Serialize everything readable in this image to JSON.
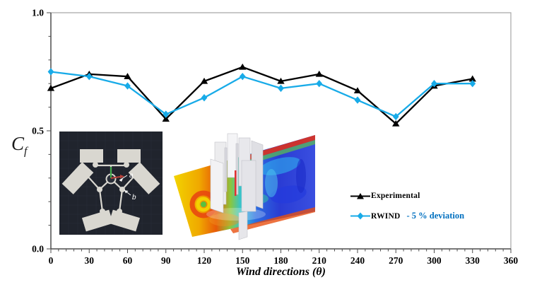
{
  "chart_data": {
    "type": "line",
    "title": "",
    "xlabel": "Wind directions (θ)",
    "ylabel_main": "C",
    "ylabel_sub": "f",
    "xlim": [
      0,
      360
    ],
    "ylim": [
      0,
      1
    ],
    "grid": false,
    "x_major_tick_step": 30,
    "x_minor_tick_step": 6,
    "x_major_tick_labels": [
      "0",
      "30",
      "60",
      "90",
      "120",
      "150",
      "180",
      "210",
      "240",
      "270",
      "300",
      "330",
      "360"
    ],
    "y_minor_tick_step": 0.1,
    "y_major_ticks": [
      0,
      0.5,
      1
    ],
    "y_major_tick_labels": [
      "0.0",
      "0.5",
      "1.0"
    ],
    "x": [
      0,
      30,
      60,
      90,
      120,
      150,
      180,
      210,
      240,
      270,
      300,
      330
    ],
    "series": [
      {
        "name": "Experimental",
        "color": "#000000",
        "marker": "triangle",
        "values": [
          0.68,
          0.74,
          0.73,
          0.55,
          0.71,
          0.77,
          0.71,
          0.74,
          0.67,
          0.53,
          0.69,
          0.72
        ]
      },
      {
        "name": "RWIND",
        "color": "#18ABE8",
        "marker": "diamond",
        "values": [
          0.75,
          0.73,
          0.69,
          0.57,
          0.64,
          0.73,
          0.68,
          0.7,
          0.63,
          0.56,
          0.7,
          0.7
        ]
      }
    ],
    "legend": {
      "position": "inside-right",
      "entries": [
        {
          "label": "Experimental",
          "suffix": "",
          "suffix_color": ""
        },
        {
          "label": "RWIND",
          "suffix": "- 5 % deviation",
          "suffix_color": "#0070C0"
        }
      ]
    },
    "axis_colors": {
      "axis": "#4d4d4d",
      "frame": "#a6a6a6"
    }
  },
  "insets": {
    "plan_schematic": {
      "label_a": "a",
      "label_b": "b"
    },
    "cfd_render": {}
  }
}
